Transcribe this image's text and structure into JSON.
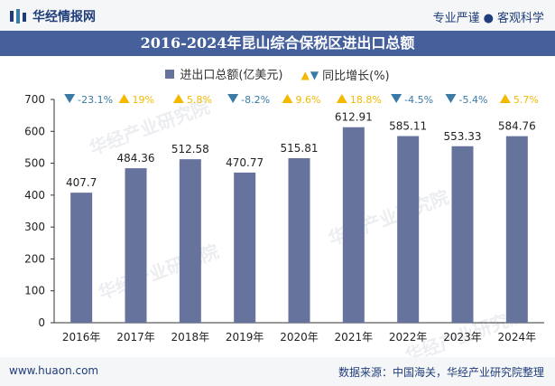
{
  "header": {
    "brand_name": "华经情报网",
    "tagline_left": "专业严谨",
    "tagline_dot": "●",
    "tagline_right": "客观科学"
  },
  "chart_title": "2016-2024年昆山综合保税区进出口总额",
  "legend": {
    "bar_label": "进出口总额(亿美元)",
    "growth_label": "同比增长(%)"
  },
  "watermark": "华经产业研究院",
  "footer": {
    "site": "www.huaon.com",
    "source": "数据来源：中国海关，华经产业研究院整理"
  },
  "colors": {
    "bar": "#66749d",
    "up": "#f5b800",
    "down": "#3a7aa6",
    "title_bg": "#45609b"
  },
  "chart_data": {
    "type": "bar",
    "categories": [
      "2016年",
      "2017年",
      "2018年",
      "2019年",
      "2020年",
      "2021年",
      "2022年",
      "2023年",
      "2024年"
    ],
    "series": [
      {
        "name": "进出口总额(亿美元)",
        "values": [
          407.7,
          484.36,
          512.58,
          470.77,
          515.81,
          612.91,
          585.11,
          553.33,
          584.76
        ]
      }
    ],
    "value_labels": [
      "407.7",
      "484.36",
      "512.58",
      "470.77",
      "515.81",
      "612.91",
      "585.11",
      "553.33",
      "584.76"
    ],
    "growth": [
      -23.1,
      19,
      5.8,
      -8.2,
      9.6,
      18.8,
      -4.5,
      -5.4,
      5.7
    ],
    "growth_labels": [
      "-23.1%",
      "19%",
      "5.8%",
      "-8.2%",
      "9.6%",
      "18.8%",
      "-4.5%",
      "-5.4%",
      "5.7%"
    ],
    "yticks": [
      "0",
      "100",
      "200",
      "300",
      "400",
      "500",
      "600",
      "700"
    ],
    "ylim": [
      0,
      700
    ],
    "xlabel": "",
    "ylabel": "",
    "grid": false,
    "legend_position": "top"
  }
}
